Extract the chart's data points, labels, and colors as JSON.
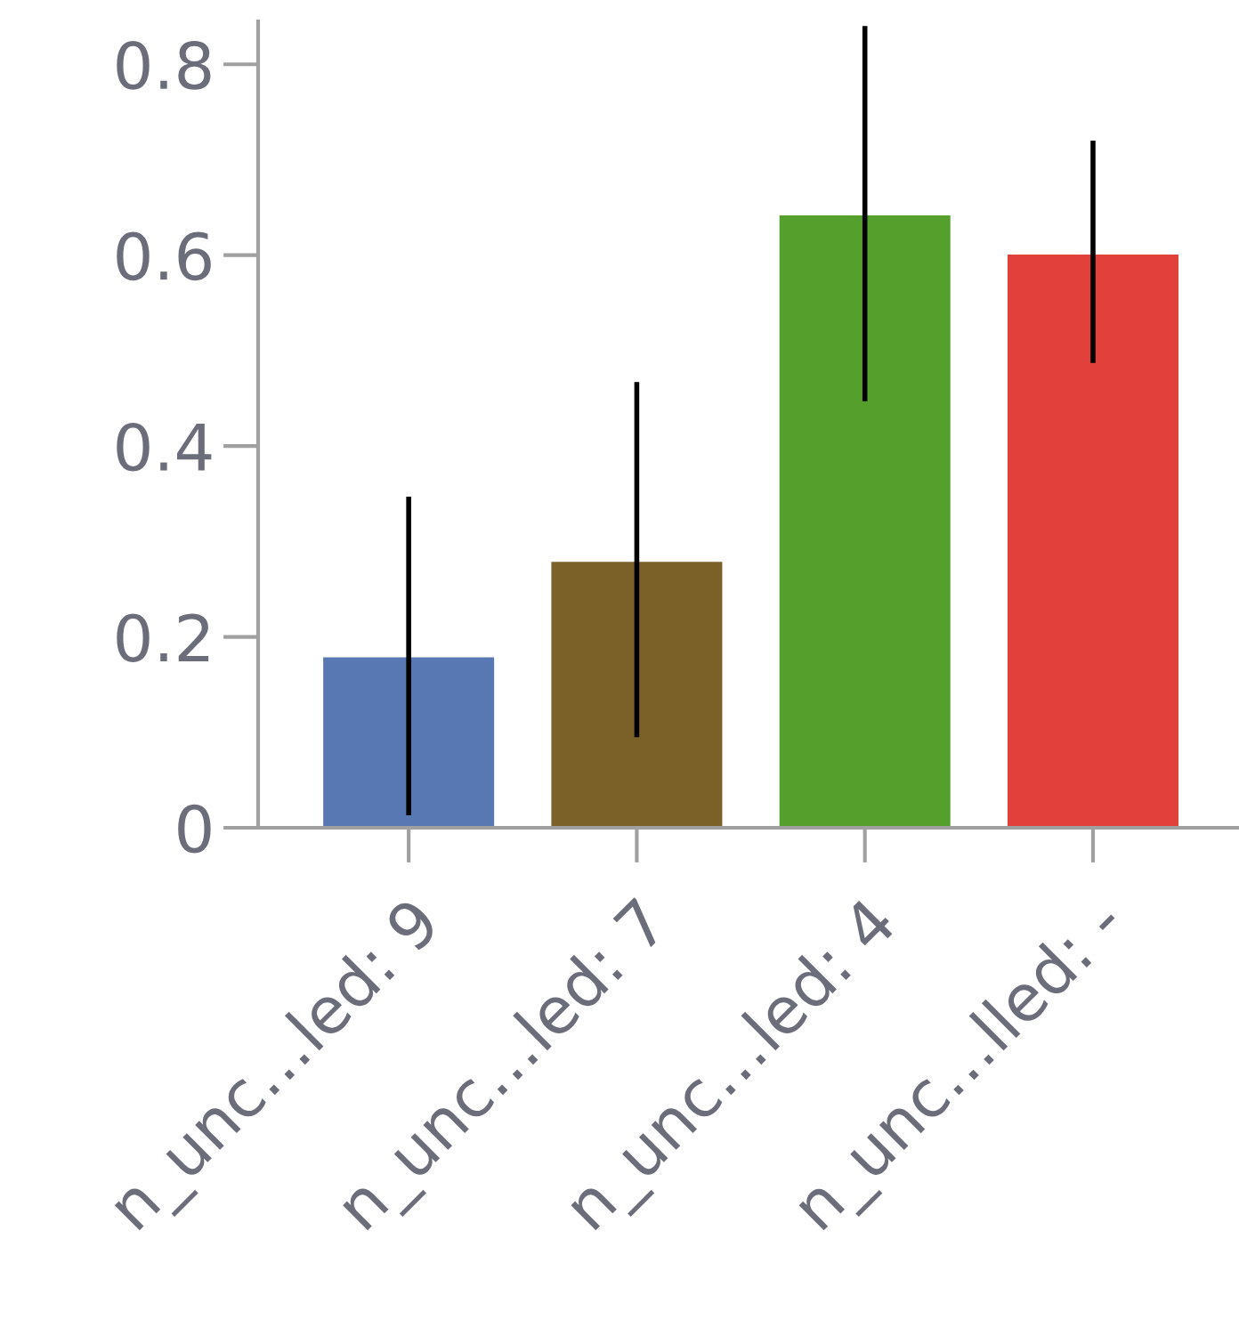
{
  "chart_data": {
    "type": "bar",
    "categories": [
      "n_unc…led: 9",
      "n_unc…led: 7",
      "n_unc…led: 4",
      "n_unc…lled: -"
    ],
    "values": [
      0.18,
      0.28,
      0.643,
      0.602
    ],
    "colors": [
      "#5778b3",
      "#7b6128",
      "#55a02c",
      "#e2403a"
    ],
    "errors": [
      [
        0.013,
        0.347
      ],
      [
        0.095,
        0.467
      ],
      [
        0.447,
        0.84
      ],
      [
        0.487,
        0.72
      ]
    ],
    "ylim": [
      0,
      0.845
    ],
    "yticks": [
      0,
      0.2,
      0.4,
      0.6,
      0.8
    ],
    "grid": false
  }
}
